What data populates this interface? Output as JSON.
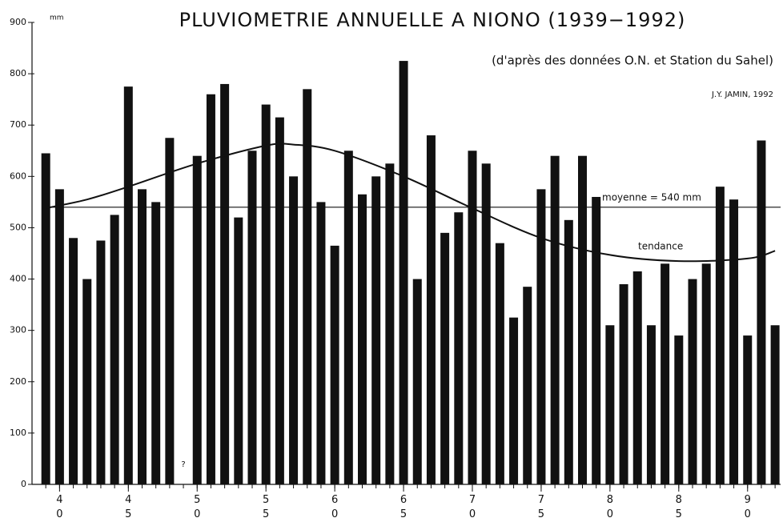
{
  "chart_data": {
    "type": "bar",
    "title": "PLUVIOMETRIE ANNUELLE A NIONO (1939−1992)",
    "subtitle": "(d'après des données O.N. et Station du Sahel)",
    "author": "J.Y. JAMIN, 1992",
    "y_unit": "mm",
    "color": "#111111",
    "x": [
      1939,
      1940,
      1941,
      1942,
      1943,
      1944,
      1945,
      1946,
      1947,
      1948,
      1949,
      1950,
      1951,
      1952,
      1953,
      1954,
      1955,
      1956,
      1957,
      1958,
      1959,
      1960,
      1961,
      1962,
      1963,
      1964,
      1965,
      1966,
      1967,
      1968,
      1969,
      1970,
      1971,
      1972,
      1973,
      1974,
      1975,
      1976,
      1977,
      1978,
      1979,
      1980,
      1981,
      1982,
      1983,
      1984,
      1985,
      1986,
      1987,
      1988,
      1989,
      1990,
      1991,
      1992
    ],
    "values": [
      645,
      575,
      480,
      400,
      475,
      525,
      775,
      575,
      550,
      675,
      null,
      640,
      760,
      780,
      520,
      650,
      740,
      715,
      600,
      770,
      550,
      465,
      650,
      565,
      600,
      625,
      825,
      400,
      680,
      490,
      530,
      650,
      625,
      470,
      325,
      385,
      575,
      640,
      515,
      640,
      560,
      310,
      390,
      415,
      310,
      430,
      290,
      400,
      430,
      580,
      555,
      290,
      670,
      310
    ],
    "xlim": [
      1938,
      1992.4
    ],
    "xticks": [
      {
        "value": 1940,
        "label": "40"
      },
      {
        "value": 1945,
        "label": "45"
      },
      {
        "value": 1950,
        "label": "50"
      },
      {
        "value": 1955,
        "label": "55"
      },
      {
        "value": 1960,
        "label": "60"
      },
      {
        "value": 1965,
        "label": "65"
      },
      {
        "value": 1970,
        "label": "70"
      },
      {
        "value": 1975,
        "label": "75"
      },
      {
        "value": 1980,
        "label": "80"
      },
      {
        "value": 1985,
        "label": "85"
      },
      {
        "value": 1990,
        "label": "90"
      }
    ],
    "ylim": [
      0,
      900
    ],
    "yticks": [
      0,
      100,
      200,
      300,
      400,
      500,
      600,
      700,
      800,
      900
    ],
    "mean": {
      "label": "moyenne = 540 mm",
      "value": 540
    },
    "trend": {
      "name": "tendance",
      "color": "#111111",
      "x": [
        1939,
        1942,
        1945,
        1950,
        1955,
        1957,
        1960,
        1965,
        1970,
        1975,
        1980,
        1985,
        1990,
        1992
      ],
      "values": [
        538,
        555,
        580,
        625,
        660,
        662,
        650,
        600,
        538,
        480,
        447,
        435,
        440,
        455
      ]
    },
    "annotations": [
      {
        "text": "?",
        "x": 1949
      }
    ]
  }
}
